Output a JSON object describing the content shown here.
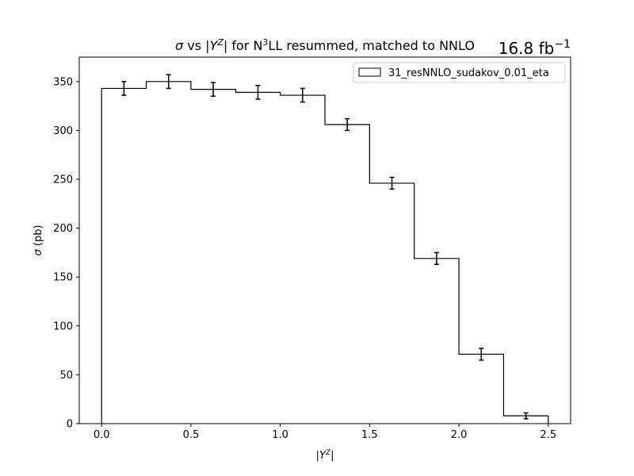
{
  "chart_data": {
    "type": "step-histogram",
    "title_parts": {
      "sigma": "σ",
      "vs": " vs |",
      "y": "Y",
      "sup_z": "Z",
      "mid": "| for N",
      "sup_3": "3",
      "rest": "LL resummed, matched to NNLO"
    },
    "lumi_text": "16.8 fb",
    "lumi_sup": "−1",
    "xlabel_parts": {
      "pre": "|",
      "y": "Y",
      "sup_z": "Z",
      "post": "|"
    },
    "ylabel_parts": {
      "sigma": "σ",
      "rest": " (pb)"
    },
    "xlim": [
      -0.125,
      2.625
    ],
    "ylim": [
      0,
      375
    ],
    "xticks": [
      0.0,
      0.5,
      1.0,
      1.5,
      2.0,
      2.5
    ],
    "xtick_labels": [
      "0.0",
      "0.5",
      "1.0",
      "1.5",
      "2.0",
      "2.5"
    ],
    "yticks": [
      0,
      50,
      100,
      150,
      200,
      250,
      300,
      350
    ],
    "ytick_labels": [
      "0",
      "50",
      "100",
      "150",
      "200",
      "250",
      "300",
      "350"
    ],
    "legend_position": "top-right",
    "series": [
      {
        "name": "31_resNNLO_sudakov_0.01_eta",
        "color": "#000000",
        "bin_edges": [
          0.0,
          0.25,
          0.5,
          0.75,
          1.0,
          1.25,
          1.5,
          1.75,
          2.0,
          2.25,
          2.5
        ],
        "values": [
          343,
          350,
          342,
          339,
          336,
          306,
          246,
          169,
          71,
          8
        ],
        "errors": [
          7,
          7,
          7,
          7,
          7,
          6,
          6,
          6,
          6,
          3
        ]
      }
    ]
  }
}
